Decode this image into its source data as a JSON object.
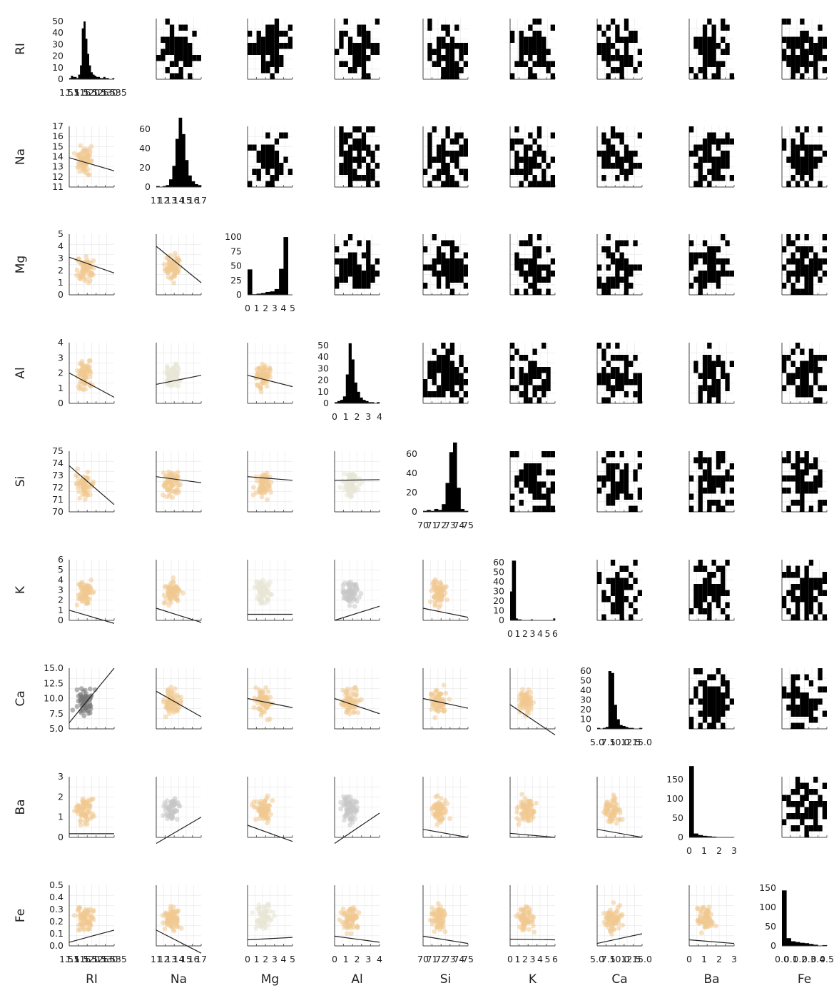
{
  "chart_data": {
    "type": "scatter",
    "variables": [
      "RI",
      "Na",
      "Mg",
      "Al",
      "Si",
      "K",
      "Ca",
      "Ba",
      "Fe"
    ],
    "ticks": {
      "RI": [
        "1.51",
        "1.515",
        "1.520",
        "1.525",
        "1.530",
        "1.535"
      ],
      "Na": [
        "11",
        "12",
        "13",
        "14",
        "15",
        "16",
        "17"
      ],
      "Mg": [
        "0",
        "1",
        "2",
        "3",
        "4",
        "5"
      ],
      "Al": [
        "0",
        "1",
        "2",
        "3",
        "4"
      ],
      "Si": [
        "70",
        "71",
        "72",
        "73",
        "74",
        "75"
      ],
      "K": [
        "0",
        "1",
        "2",
        "3",
        "4",
        "5",
        "6"
      ],
      "Ca": [
        "5.0",
        "7.5",
        "10.0",
        "12.5",
        "15.0"
      ],
      "Ba": [
        "0",
        "1",
        "2",
        "3"
      ],
      "Fe": [
        "0.0",
        "0.1",
        "0.2",
        "0.3",
        "0.4",
        "0.5"
      ]
    },
    "yticks_offdiag": {
      "RI": [
        "0",
        "10",
        "20",
        "30",
        "40",
        "50"
      ],
      "Na": [
        "11",
        "12",
        "13",
        "14",
        "15",
        "16",
        "17"
      ],
      "Mg": [
        "0",
        "1",
        "2",
        "3",
        "4",
        "5"
      ],
      "Al": [
        "0",
        "1",
        "2",
        "3",
        "4"
      ],
      "Si": [
        "70",
        "71",
        "72",
        "73",
        "74",
        "75"
      ],
      "K": [
        "0",
        "1",
        "2",
        "3",
        "4",
        "5",
        "6"
      ],
      "Ca": [
        "5.0",
        "7.5",
        "10.0",
        "12.5",
        "15.0"
      ],
      "Ba": [
        "0",
        "1",
        "2",
        "3"
      ],
      "Fe": [
        "0.0",
        "0.1",
        "0.2",
        "0.3",
        "0.4",
        "0.5"
      ]
    },
    "histogram_yticks": {
      "RI": [
        "0",
        "10",
        "20",
        "30",
        "40",
        "50"
      ],
      "Na": [
        "0",
        "20",
        "40",
        "60"
      ],
      "Mg": [
        "0",
        "25",
        "50",
        "75",
        "100"
      ],
      "Al": [
        "0",
        "10",
        "20",
        "30",
        "40",
        "50"
      ],
      "Si": [
        "0",
        "20",
        "40",
        "60"
      ],
      "K": [
        "0",
        "10",
        "20",
        "30",
        "40",
        "50",
        "60"
      ],
      "Ca": [
        "0",
        "10",
        "20",
        "30",
        "40",
        "50",
        "60"
      ],
      "Ba": [
        "0",
        "50",
        "100",
        "150"
      ],
      "Fe": [
        "0",
        "50",
        "100",
        "150"
      ]
    },
    "histograms": {
      "RI": {
        "range": [
          1.51,
          1.535
        ],
        "counts": [
          1,
          3,
          2,
          2,
          1,
          4,
          12,
          44,
          50,
          35,
          22,
          12,
          6,
          4,
          3,
          2,
          2,
          1,
          1,
          2,
          1,
          1,
          0,
          0,
          1
        ]
      },
      "Na": {
        "range": [
          10.5,
          17.5
        ],
        "counts": [
          1,
          0,
          1,
          2,
          8,
          22,
          50,
          72,
          55,
          28,
          12,
          6,
          3,
          2
        ]
      },
      "Mg": {
        "range": [
          0,
          5
        ],
        "counts": [
          44,
          1,
          2,
          3,
          5,
          6,
          10,
          45,
          100,
          0
        ]
      },
      "Al": {
        "range": [
          0,
          4
        ],
        "counts": [
          1,
          2,
          3,
          6,
          25,
          52,
          38,
          18,
          10,
          5,
          3,
          2,
          1,
          1,
          0,
          1
        ]
      },
      "Si": {
        "range": [
          69.5,
          75.5
        ],
        "counts": [
          1,
          2,
          1,
          3,
          2,
          8,
          30,
          62,
          72,
          25,
          3,
          1
        ]
      },
      "K": {
        "range": [
          0,
          6.5
        ],
        "counts": [
          30,
          62,
          62,
          2,
          1,
          1,
          0,
          0,
          0,
          0,
          0,
          1,
          0,
          0,
          0,
          0,
          0,
          0,
          0,
          0,
          0,
          0,
          0,
          2
        ]
      },
      "Ca": {
        "range": [
          5,
          17
        ],
        "counts": [
          1,
          0,
          1,
          2,
          60,
          58,
          25,
          10,
          4,
          3,
          2,
          1,
          1,
          0,
          0,
          1
        ]
      },
      "Ba": {
        "range": [
          0,
          3.3
        ],
        "counts": [
          185,
          10,
          6,
          4,
          3,
          2,
          1,
          1,
          1,
          1
        ]
      },
      "Fe": {
        "range": [
          0,
          0.52
        ],
        "counts": [
          144,
          20,
          12,
          10,
          8,
          7,
          5,
          3,
          1,
          2
        ]
      }
    },
    "regression_lines": {
      "1,0": [
        13.9,
        12.6
      ],
      "2,0": [
        3.1,
        1.8
      ],
      "2,1": [
        4.0,
        1.0
      ],
      "3,0": [
        2.0,
        0.4
      ],
      "3,1": [
        1.25,
        1.85
      ],
      "3,2": [
        1.85,
        1.1
      ],
      "4,0": [
        73.8,
        70.6
      ],
      "4,1": [
        72.9,
        72.4
      ],
      "4,2": [
        72.9,
        72.6
      ],
      "4,3": [
        72.6,
        72.65
      ],
      "5,0": [
        1.0,
        -0.3
      ],
      "5,1": [
        1.2,
        -0.2
      ],
      "5,2": [
        0.6,
        0.6
      ],
      "5,3": [
        0.0,
        1.4
      ],
      "5,4": [
        1.2,
        0.3
      ],
      "6,0": [
        6.0,
        15.0
      ],
      "6,1": [
        11.2,
        7.0
      ],
      "6,2": [
        10.0,
        8.5
      ],
      "6,3": [
        10.0,
        7.5
      ],
      "6,4": [
        10.0,
        8.4
      ],
      "6,5": [
        9.0,
        4.0
      ],
      "7,0": [
        0.18,
        0.18
      ],
      "7,1": [
        -0.3,
        1.0
      ],
      "7,2": [
        0.6,
        -0.2
      ],
      "7,3": [
        -0.3,
        1.2
      ],
      "7,4": [
        0.4,
        0.0
      ],
      "7,5": [
        0.2,
        0.0
      ],
      "7,6": [
        0.4,
        0.0
      ],
      "8,0": [
        0.03,
        0.13
      ],
      "8,1": [
        0.13,
        -0.06
      ],
      "8,2": [
        0.05,
        0.07
      ],
      "8,3": [
        0.08,
        0.03
      ],
      "8,4": [
        0.08,
        0.02
      ],
      "8,5": [
        0.055,
        0.05
      ],
      "8,6": [
        0.02,
        0.1
      ],
      "8,7": [
        0.05,
        0.02
      ]
    }
  },
  "colors": {
    "scatter_default": "#f1c98f",
    "scatter_pale": "#e8e6d6",
    "scatter_gray": "#c7c7c7",
    "scatter_dark": "#777777",
    "heatmap": "#000000",
    "grid": "#e6e6e6",
    "axis": "#444444",
    "line": "#222222"
  }
}
